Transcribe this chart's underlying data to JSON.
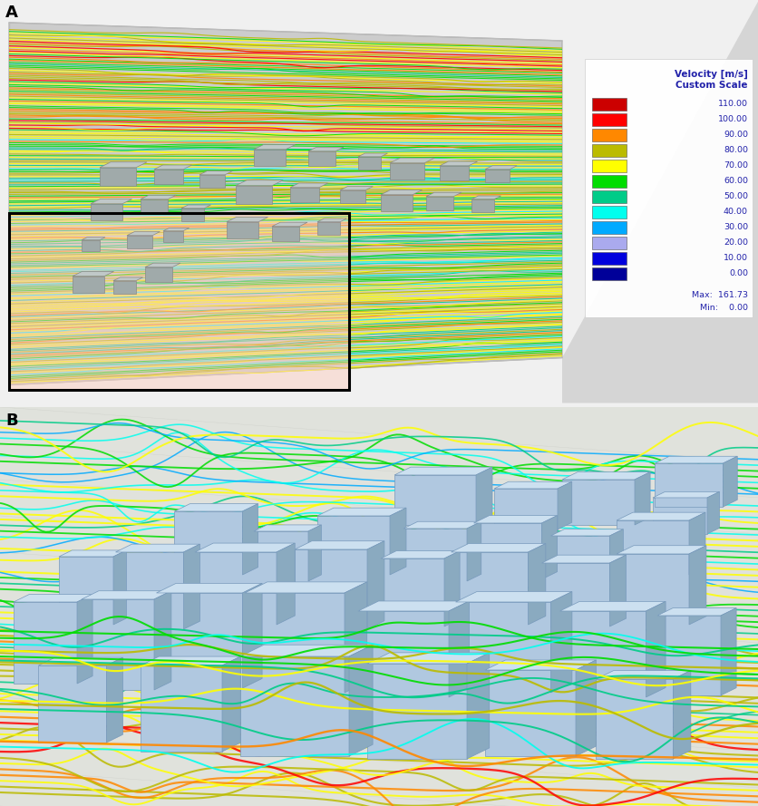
{
  "fig_bg": "#f0f0f0",
  "panel_a_bg": "#d8d8d8",
  "panel_b_bg": "#e0e4e0",
  "label_fontsize": 13,
  "legend_title_color": "#2222aa",
  "legend_color": "#2222aa",
  "legend_title": "Velocity [m/s]\nCustom Scale",
  "legend_entries": [
    {
      "label": "110.00",
      "color": "#cc0000"
    },
    {
      "label": "100.00",
      "color": "#ff0000"
    },
    {
      "label": "90.00",
      "color": "#ff8800"
    },
    {
      "label": "80.00",
      "color": "#bbbb00"
    },
    {
      "label": "70.00",
      "color": "#ffff00"
    },
    {
      "label": "60.00",
      "color": "#00dd00"
    },
    {
      "label": "50.00",
      "color": "#00cc88"
    },
    {
      "label": "40.00",
      "color": "#00ffee"
    },
    {
      "label": "30.00",
      "color": "#00aaff"
    },
    {
      "label": "20.00",
      "color": "#aaaaee"
    },
    {
      "label": "10.00",
      "color": "#0000dd"
    },
    {
      "label": "0.00",
      "color": "#000099"
    }
  ],
  "legend_max": "Max:  161.73",
  "legend_min": "Min:    0.00",
  "velocity_colors": [
    "#000099",
    "#0000dd",
    "#aaaaee",
    "#00aaff",
    "#00ffee",
    "#00cc88",
    "#00dd00",
    "#ffff00",
    "#bbbb00",
    "#ff8800",
    "#ff0000",
    "#cc0000"
  ]
}
